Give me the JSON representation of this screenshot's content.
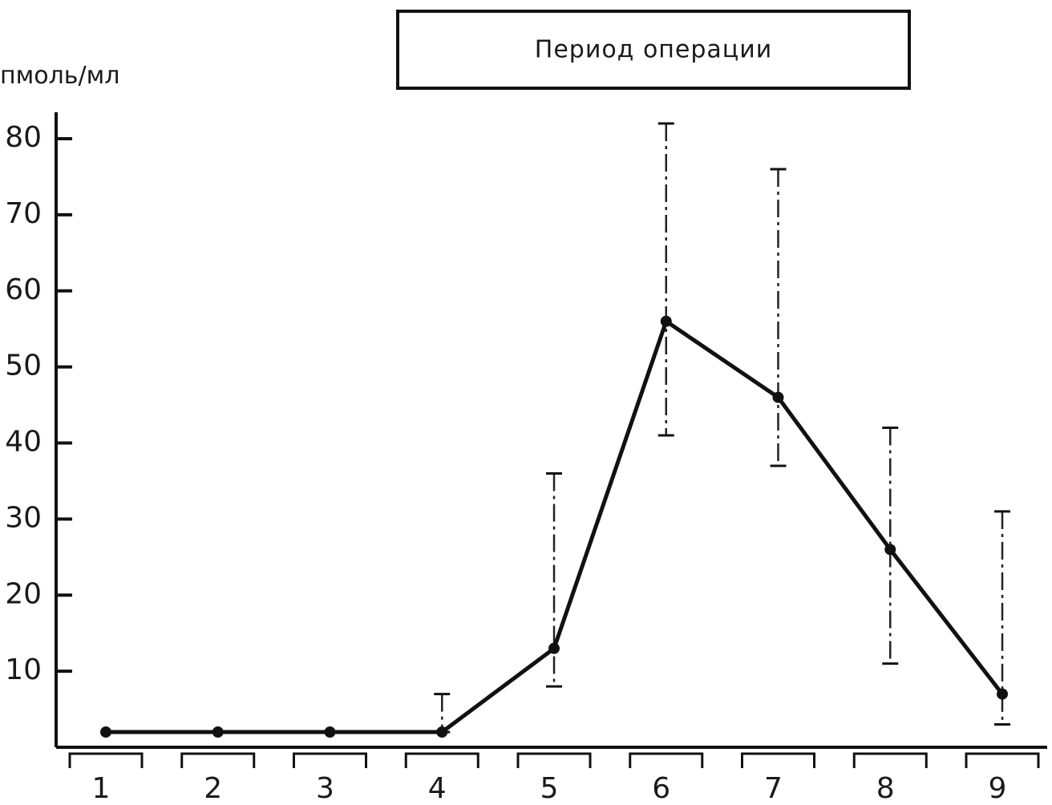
{
  "chart_data": {
    "type": "line",
    "ylabel": "пмоль/мл",
    "annotation": "Период операции",
    "x": [
      1,
      2,
      3,
      4,
      5,
      6,
      7,
      8,
      9
    ],
    "categories": [
      "1",
      "2",
      "3",
      "4",
      "5",
      "6",
      "7",
      "8",
      "9"
    ],
    "yticks": [
      "10",
      "20",
      "30",
      "40",
      "50",
      "60",
      "70",
      "80"
    ],
    "ylim": [
      0,
      80
    ],
    "grid": false,
    "series": [
      {
        "values": [
          2,
          2,
          2,
          2,
          13,
          56,
          46,
          26,
          7
        ],
        "err_low": [
          2,
          2,
          2,
          2,
          8,
          41,
          37,
          11,
          3
        ],
        "err_high": [
          2,
          2,
          2,
          7,
          36,
          82,
          76,
          42,
          31
        ]
      }
    ],
    "colors": {
      "line": "#111111",
      "errbar": "#222222"
    }
  }
}
